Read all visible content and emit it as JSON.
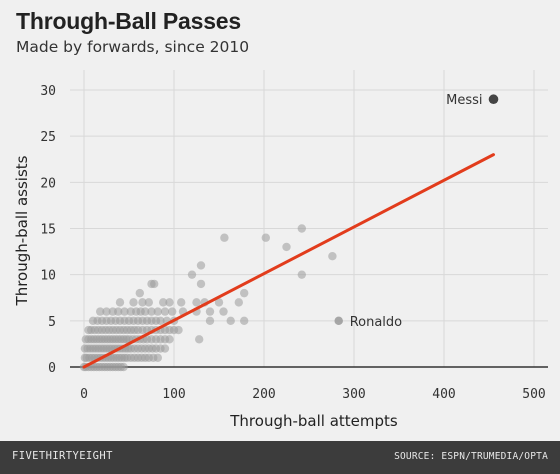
{
  "header": {
    "title": "Through-Ball Passes",
    "subtitle": "Made by forwards, since 2010"
  },
  "footer": {
    "brand": "FIVETHIRTYEIGHT",
    "source": "SOURCE: ESPN/TRUMEDIA/OPTA"
  },
  "colors": {
    "background": "#f0f0f0",
    "points": "#9a9a9a",
    "highlight": "#444444",
    "trend": "#e23c1c",
    "grid": "#d8d8d8",
    "baseline": "#333333",
    "footer": "#3c3c3c"
  },
  "chart_data": {
    "type": "scatter",
    "title": "Through-Ball Passes",
    "subtitle": "Made by forwards, since 2010",
    "xlabel": "Through-ball attempts",
    "ylabel": "Through-ball assists",
    "xlim": [
      -5,
      505
    ],
    "ylim": [
      0,
      30
    ],
    "xticks": [
      0,
      100,
      200,
      300,
      400,
      500
    ],
    "yticks": [
      0,
      5,
      10,
      15,
      20,
      25,
      30
    ],
    "grid": true,
    "trendline": {
      "from": [
        0,
        0
      ],
      "to": [
        455,
        23
      ]
    },
    "annotations": [
      {
        "label": "Messi",
        "x": 455,
        "y": 29,
        "highlight": true
      },
      {
        "label": "Ronaldo",
        "x": 283,
        "y": 5,
        "highlight": false
      }
    ],
    "points": [
      [
        455,
        29
      ],
      [
        283,
        5
      ],
      [
        156,
        14
      ],
      [
        202,
        14
      ],
      [
        225,
        13
      ],
      [
        242,
        15
      ],
      [
        276,
        12
      ],
      [
        242,
        10
      ],
      [
        130,
        11
      ],
      [
        120,
        10
      ],
      [
        130,
        9
      ],
      [
        178,
        8
      ],
      [
        150,
        7
      ],
      [
        172,
        7
      ],
      [
        134,
        7
      ],
      [
        125,
        7
      ],
      [
        108,
        7
      ],
      [
        140,
        6
      ],
      [
        155,
        6
      ],
      [
        125,
        6
      ],
      [
        110,
        6
      ],
      [
        140,
        5
      ],
      [
        163,
        5
      ],
      [
        178,
        5
      ],
      [
        128,
        3
      ],
      [
        75,
        9
      ],
      [
        78,
        9
      ],
      [
        62,
        8
      ],
      [
        40,
        7
      ],
      [
        55,
        7
      ],
      [
        65,
        7
      ],
      [
        72,
        7
      ],
      [
        88,
        7
      ],
      [
        95,
        7
      ],
      [
        18,
        6
      ],
      [
        25,
        6
      ],
      [
        32,
        6
      ],
      [
        38,
        6
      ],
      [
        45,
        6
      ],
      [
        52,
        6
      ],
      [
        58,
        6
      ],
      [
        63,
        6
      ],
      [
        68,
        6
      ],
      [
        75,
        6
      ],
      [
        82,
        6
      ],
      [
        90,
        6
      ],
      [
        98,
        6
      ],
      [
        10,
        5
      ],
      [
        15,
        5
      ],
      [
        20,
        5
      ],
      [
        25,
        5
      ],
      [
        30,
        5
      ],
      [
        35,
        5
      ],
      [
        40,
        5
      ],
      [
        45,
        5
      ],
      [
        50,
        5
      ],
      [
        55,
        5
      ],
      [
        60,
        5
      ],
      [
        65,
        5
      ],
      [
        70,
        5
      ],
      [
        75,
        5
      ],
      [
        80,
        5
      ],
      [
        85,
        5
      ],
      [
        92,
        5
      ],
      [
        100,
        5
      ],
      [
        5,
        4
      ],
      [
        8,
        4
      ],
      [
        12,
        4
      ],
      [
        16,
        4
      ],
      [
        20,
        4
      ],
      [
        24,
        4
      ],
      [
        28,
        4
      ],
      [
        32,
        4
      ],
      [
        36,
        4
      ],
      [
        40,
        4
      ],
      [
        44,
        4
      ],
      [
        48,
        4
      ],
      [
        52,
        4
      ],
      [
        56,
        4
      ],
      [
        60,
        4
      ],
      [
        65,
        4
      ],
      [
        70,
        4
      ],
      [
        75,
        4
      ],
      [
        80,
        4
      ],
      [
        85,
        4
      ],
      [
        90,
        4
      ],
      [
        95,
        4
      ],
      [
        100,
        4
      ],
      [
        105,
        4
      ],
      [
        2,
        3
      ],
      [
        5,
        3
      ],
      [
        8,
        3
      ],
      [
        11,
        3
      ],
      [
        14,
        3
      ],
      [
        17,
        3
      ],
      [
        20,
        3
      ],
      [
        23,
        3
      ],
      [
        26,
        3
      ],
      [
        29,
        3
      ],
      [
        32,
        3
      ],
      [
        35,
        3
      ],
      [
        38,
        3
      ],
      [
        41,
        3
      ],
      [
        44,
        3
      ],
      [
        47,
        3
      ],
      [
        50,
        3
      ],
      [
        54,
        3
      ],
      [
        58,
        3
      ],
      [
        62,
        3
      ],
      [
        66,
        3
      ],
      [
        70,
        3
      ],
      [
        75,
        3
      ],
      [
        80,
        3
      ],
      [
        85,
        3
      ],
      [
        90,
        3
      ],
      [
        95,
        3
      ],
      [
        1,
        2
      ],
      [
        4,
        2
      ],
      [
        7,
        2
      ],
      [
        10,
        2
      ],
      [
        13,
        2
      ],
      [
        16,
        2
      ],
      [
        19,
        2
      ],
      [
        22,
        2
      ],
      [
        25,
        2
      ],
      [
        28,
        2
      ],
      [
        31,
        2
      ],
      [
        34,
        2
      ],
      [
        37,
        2
      ],
      [
        40,
        2
      ],
      [
        43,
        2
      ],
      [
        46,
        2
      ],
      [
        49,
        2
      ],
      [
        52,
        2
      ],
      [
        56,
        2
      ],
      [
        60,
        2
      ],
      [
        64,
        2
      ],
      [
        68,
        2
      ],
      [
        72,
        2
      ],
      [
        76,
        2
      ],
      [
        80,
        2
      ],
      [
        85,
        2
      ],
      [
        90,
        2
      ],
      [
        1,
        1
      ],
      [
        3,
        1
      ],
      [
        6,
        1
      ],
      [
        9,
        1
      ],
      [
        12,
        1
      ],
      [
        15,
        1
      ],
      [
        18,
        1
      ],
      [
        21,
        1
      ],
      [
        24,
        1
      ],
      [
        27,
        1
      ],
      [
        30,
        1
      ],
      [
        33,
        1
      ],
      [
        36,
        1
      ],
      [
        39,
        1
      ],
      [
        42,
        1
      ],
      [
        45,
        1
      ],
      [
        48,
        1
      ],
      [
        52,
        1
      ],
      [
        56,
        1
      ],
      [
        60,
        1
      ],
      [
        64,
        1
      ],
      [
        68,
        1
      ],
      [
        72,
        1
      ],
      [
        77,
        1
      ],
      [
        82,
        1
      ],
      [
        0,
        0
      ],
      [
        2,
        0
      ],
      [
        5,
        0
      ],
      [
        8,
        0
      ],
      [
        11,
        0
      ],
      [
        14,
        0
      ],
      [
        17,
        0
      ],
      [
        20,
        0
      ],
      [
        23,
        0
      ],
      [
        26,
        0
      ],
      [
        29,
        0
      ],
      [
        32,
        0
      ],
      [
        35,
        0
      ],
      [
        38,
        0
      ],
      [
        41,
        0
      ],
      [
        44,
        0
      ]
    ]
  }
}
